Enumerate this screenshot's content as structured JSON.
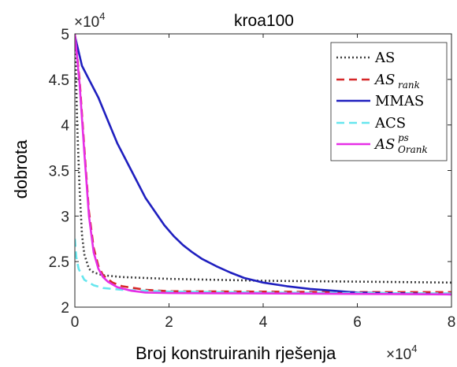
{
  "chart_data": {
    "type": "line",
    "title": "kroa100",
    "xlabel": "Broj konstruiranih rješenja",
    "ylabel": "dobrota",
    "x_multiplier_label": "×10",
    "x_multiplier_exp": "4",
    "y_multiplier_label": "×10",
    "y_multiplier_exp": "4",
    "xlim": [
      0,
      80000
    ],
    "ylim": [
      20000,
      50000
    ],
    "x_ticks": [
      0,
      20000,
      40000,
      60000,
      80000
    ],
    "x_tick_labels": [
      "0",
      "2",
      "4",
      "6",
      "8"
    ],
    "y_ticks": [
      20000,
      25000,
      30000,
      35000,
      40000,
      45000,
      50000
    ],
    "y_tick_labels": [
      "2",
      "2.5",
      "3",
      "3.5",
      "4",
      "4.5",
      "5"
    ],
    "grid": false,
    "legend_position": "top-right",
    "series": [
      {
        "key": "AS",
        "legend": {
          "main": "AS",
          "sub": "",
          "sup": ""
        },
        "color": "#404040",
        "dash": "2,3",
        "points": [
          [
            0,
            50000
          ],
          [
            200,
            46500
          ],
          [
            500,
            40000
          ],
          [
            1000,
            33000
          ],
          [
            1500,
            28000
          ],
          [
            2000,
            25800
          ],
          [
            3000,
            24200
          ],
          [
            4000,
            23800
          ],
          [
            6000,
            23500
          ],
          [
            10000,
            23300
          ],
          [
            20000,
            23100
          ],
          [
            40000,
            22900
          ],
          [
            60000,
            22800
          ],
          [
            80000,
            22700
          ]
        ]
      },
      {
        "key": "AS_rank",
        "legend": {
          "main": "AS",
          "sub": "rank",
          "sup": ""
        },
        "color": "#d62728",
        "dash": "10,6",
        "points": [
          [
            0,
            50000
          ],
          [
            1000,
            45000
          ],
          [
            2000,
            37500
          ],
          [
            3000,
            30500
          ],
          [
            4000,
            26500
          ],
          [
            5000,
            24500
          ],
          [
            6000,
            23500
          ],
          [
            8000,
            22700
          ],
          [
            10000,
            22300
          ],
          [
            15000,
            21900
          ],
          [
            20000,
            21750
          ],
          [
            40000,
            21700
          ],
          [
            60000,
            21650
          ],
          [
            80000,
            21650
          ]
        ]
      },
      {
        "key": "MMAS",
        "legend": {
          "main": "MMAS",
          "sub": "",
          "sup": ""
        },
        "color": "#1f1fbf",
        "dash": "",
        "points": [
          [
            0,
            49800
          ],
          [
            1500,
            46500
          ],
          [
            3000,
            45000
          ],
          [
            5000,
            43000
          ],
          [
            7000,
            40500
          ],
          [
            9000,
            38000
          ],
          [
            11000,
            36000
          ],
          [
            13000,
            34000
          ],
          [
            15000,
            32000
          ],
          [
            17000,
            30500
          ],
          [
            19000,
            29000
          ],
          [
            21000,
            27800
          ],
          [
            23000,
            26800
          ],
          [
            25000,
            26000
          ],
          [
            27000,
            25300
          ],
          [
            30000,
            24500
          ],
          [
            33000,
            23800
          ],
          [
            36000,
            23200
          ],
          [
            40000,
            22700
          ],
          [
            45000,
            22300
          ],
          [
            50000,
            22000
          ],
          [
            55000,
            21800
          ],
          [
            60000,
            21600
          ],
          [
            70000,
            21500
          ],
          [
            80000,
            21400
          ]
        ]
      },
      {
        "key": "ACS",
        "legend": {
          "main": "ACS",
          "sub": "",
          "sup": ""
        },
        "color": "#66e6ee",
        "dash": "10,6",
        "points": [
          [
            0,
            27500
          ],
          [
            300,
            25500
          ],
          [
            800,
            24200
          ],
          [
            2000,
            23000
          ],
          [
            4000,
            22400
          ],
          [
            6000,
            22100
          ],
          [
            10000,
            21900
          ],
          [
            20000,
            21700
          ],
          [
            40000,
            21600
          ],
          [
            60000,
            21550
          ],
          [
            80000,
            21500
          ]
        ]
      },
      {
        "key": "AS_Orank_ps",
        "legend": {
          "main": "AS",
          "sub": "Orank",
          "sup": "ps"
        },
        "color": "#e62ee6",
        "dash": "",
        "points": [
          [
            0,
            50000
          ],
          [
            1000,
            44500
          ],
          [
            2000,
            37000
          ],
          [
            3000,
            30000
          ],
          [
            4000,
            26000
          ],
          [
            5000,
            24200
          ],
          [
            6000,
            23300
          ],
          [
            7000,
            22800
          ],
          [
            9000,
            22200
          ],
          [
            12000,
            21800
          ],
          [
            15000,
            21600
          ],
          [
            20000,
            21550
          ],
          [
            40000,
            21500
          ],
          [
            60000,
            21450
          ],
          [
            80000,
            21400
          ]
        ]
      }
    ]
  }
}
